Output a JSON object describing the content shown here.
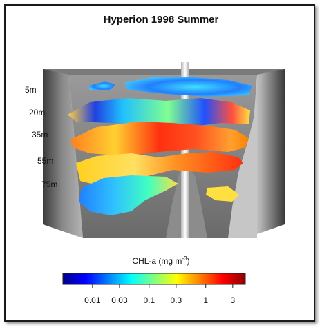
{
  "chart_data": {
    "type": "3d-surface",
    "title": "Hyperion 1998 Summer",
    "depth_levels": [
      "5m",
      "20m",
      "35m",
      "55m",
      "75m"
    ],
    "colorbar": {
      "label_main": "CHL-a (mg m",
      "label_exp": "-3",
      "label_close": ")",
      "scale": "log",
      "range": [
        0.003,
        5
      ],
      "ticks": [
        0.01,
        0.03,
        0.1,
        0.3,
        1,
        3
      ],
      "tick_labels": [
        "0.01",
        "0.03",
        "0.1",
        "0.3",
        "1",
        "3"
      ],
      "colors": [
        "#00008b",
        "#0000ff",
        "#0080ff",
        "#00ffff",
        "#80ff80",
        "#ffff00",
        "#ff8000",
        "#ff0000",
        "#8b0000"
      ]
    }
  }
}
